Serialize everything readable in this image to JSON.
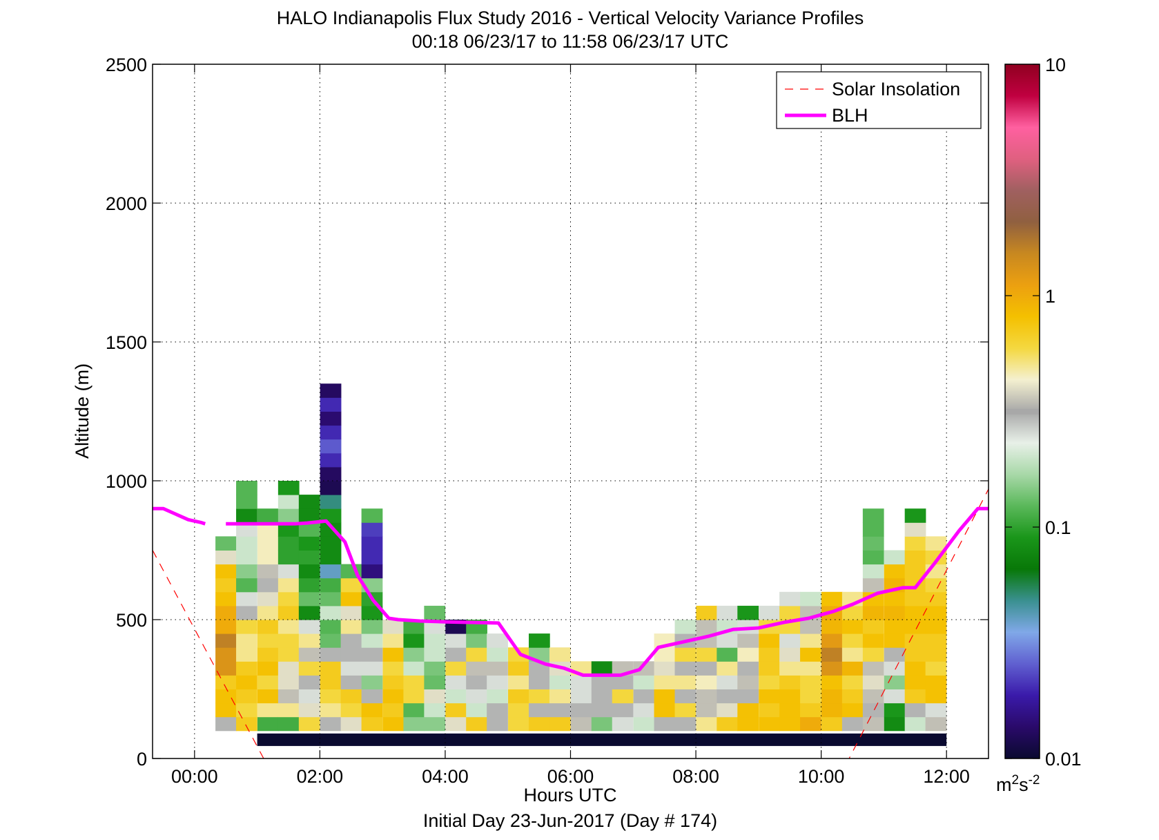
{
  "chart_data": {
    "type": "heatmap",
    "title": "HALO Indianapolis Flux Study 2016 - Vertical Velocity Variance Profiles",
    "subtitle": "00:18 06/23/17 to 11:58 06/23/17  UTC",
    "xlabel": "Hours UTC",
    "xlabel2": "Initial Day 23-Jun-2017 (Day # 174)",
    "ylabel": "Altitude (m)",
    "xlim": [
      -0.67,
      12.67
    ],
    "ylim": [
      0,
      2500
    ],
    "x_ticks": [
      0,
      2,
      4,
      6,
      8,
      10,
      12
    ],
    "x_tick_labels": [
      "00:00",
      "02:00",
      "04:00",
      "06:00",
      "08:00",
      "10:00",
      "12:00"
    ],
    "y_ticks": [
      0,
      500,
      1000,
      1500,
      2000,
      2500
    ],
    "y_tick_labels": [
      "0",
      "500",
      "1000",
      "1500",
      "2000",
      "2500"
    ],
    "grid": true,
    "legend_position": "top-right",
    "legend": [
      {
        "label": "Solar Insolation",
        "style": "dashed",
        "color": "#ff0000"
      },
      {
        "label": "BLH",
        "style": "solid",
        "color": "#ff00ff"
      }
    ],
    "colorbar": {
      "scale": "log",
      "range": [
        0.01,
        10
      ],
      "tick_values": [
        0.01,
        0.1,
        1,
        10
      ],
      "tick_labels": [
        "0.01",
        "0.1",
        "1",
        "10"
      ],
      "units_base": "m",
      "units_sup1": "2",
      "units_mid": "s",
      "units_sup2": "-2",
      "colormap": [
        "#0a0a30",
        "#2a0a6a",
        "#3a1aaa",
        "#6060d0",
        "#80a8e8",
        "#3a9090",
        "#087808",
        "#1a961a",
        "#5ab85a",
        "#a8d8a8",
        "#e8f0e8",
        "#a8a8a8",
        "#f4f0d0",
        "#f4d840",
        "#f4c000",
        "#eca010",
        "#c88820",
        "#906040",
        "#a06060",
        "#e06080",
        "#ff60a0",
        "#c00040",
        "#900020"
      ]
    },
    "blh": {
      "x": [
        -0.67,
        -0.5,
        -0.3,
        -0.1,
        0.1,
        0.17,
        0.5,
        0.8,
        1.2,
        1.6,
        1.8,
        2.1,
        2.4,
        2.6,
        2.85,
        3.1,
        3.25,
        3.6,
        4.0,
        4.4,
        4.85,
        5.2,
        5.6,
        5.9,
        6.2,
        6.5,
        6.8,
        7.1,
        7.4,
        7.8,
        8.2,
        8.6,
        9.0,
        9.4,
        9.8,
        10.2,
        10.5,
        10.9,
        11.3,
        11.5,
        11.8,
        12.2,
        12.5,
        12.67
      ],
      "y": [
        900,
        900,
        880,
        860,
        850,
        845,
        845,
        845,
        845,
        845,
        848,
        855,
        780,
        660,
        570,
        505,
        500,
        495,
        492,
        490,
        488,
        375,
        340,
        325,
        300,
        300,
        300,
        320,
        400,
        420,
        440,
        465,
        470,
        490,
        505,
        530,
        555,
        595,
        615,
        615,
        700,
        820,
        900,
        900
      ],
      "gaps_after_x": [
        0.17
      ]
    },
    "solar_insolation": {
      "segments": [
        {
          "x": [
            -0.67,
            1.15
          ],
          "y": [
            750,
            -20
          ]
        },
        {
          "x": [
            10.4,
            12.67
          ],
          "y": [
            -20,
            970
          ]
        }
      ]
    },
    "ground_bar": {
      "x": [
        1.0,
        12.0
      ],
      "y": [
        45,
        90
      ],
      "value": 0.01
    },
    "bin_width_hours": 0.333,
    "bin_height_m": 50,
    "columns": [
      {
        "x": 0.5,
        "start": 100,
        "values": [
          0.3,
          0.8,
          0.8,
          0.7,
          1.3,
          1.3,
          1.6,
          1.0,
          1.0,
          0.8,
          0.7,
          0.8,
          0.4,
          0.13
        ]
      },
      {
        "x": 0.83,
        "start": 100,
        "values": [
          0.7,
          0.6,
          0.7,
          0.8,
          0.7,
          0.5,
          0.5,
          0.6,
          0.3,
          0.25,
          0.12,
          0.15,
          0.2,
          0.2,
          0.25,
          0.08,
          0.12,
          0.12
        ]
      },
      {
        "x": 1.17,
        "start": 100,
        "values": [
          0.11,
          0.5,
          0.8,
          0.6,
          0.8,
          0.7,
          0.6,
          0.7,
          0.5,
          0.4,
          0.3,
          0.35,
          0.45,
          0.45,
          0.45,
          0.11
        ]
      },
      {
        "x": 1.5,
        "start": 100,
        "values": [
          0.11,
          0.5,
          0.35,
          0.4,
          0.4,
          0.6,
          0.6,
          0.5,
          0.7,
          0.6,
          0.5,
          0.25,
          0.1,
          0.1,
          0.09,
          0.15,
          0.2,
          0.09
        ]
      },
      {
        "x": 1.83,
        "start": 100,
        "values": [
          0.6,
          0.4,
          0.25,
          0.3,
          0.6,
          0.35,
          0.5,
          0.25,
          0.08,
          0.13,
          0.1,
          0.08,
          0.1,
          0.09,
          0.12,
          0.08,
          0.08
        ]
      },
      {
        "x": 2.17,
        "start": 100,
        "values": [
          0.3,
          0.5,
          0.6,
          0.7,
          0.7,
          0.3,
          0.13,
          0.12,
          0.2,
          0.13,
          0.11,
          0.04,
          0.08,
          0.08,
          0.08,
          0.09,
          0.05,
          0.012,
          0.013,
          0.02,
          0.025,
          0.02,
          0.014,
          0.02,
          0.013
        ]
      },
      {
        "x": 2.5,
        "start": 100,
        "values": [
          0.4,
          0.6,
          0.7,
          0.3,
          0.25,
          0.3,
          0.3,
          0.5,
          0.4,
          0.8,
          0.6,
          0.12
        ]
      },
      {
        "x": 2.83,
        "start": 100,
        "values": [
          0.7,
          0.8,
          0.3,
          0.15,
          0.25,
          0.3,
          0.2,
          0.14,
          0.09,
          0.1,
          0.15,
          0.015,
          0.02,
          0.02,
          0.022,
          0.12
        ]
      },
      {
        "x": 3.17,
        "start": 100,
        "values": [
          0.8,
          0.7,
          0.8,
          0.7,
          0.6,
          0.8,
          0.5,
          0.4
        ]
      },
      {
        "x": 3.5,
        "start": 100,
        "values": [
          0.15,
          0.12,
          0.6,
          0.6,
          0.2,
          0.15,
          0.09,
          0.11
        ]
      },
      {
        "x": 3.83,
        "start": 100,
        "values": [
          0.15,
          0.2,
          0.4,
          0.13,
          0.14,
          0.2,
          0.2,
          0.25,
          0.13
        ]
      },
      {
        "x": 4.17,
        "start": 100,
        "values": [
          0.4,
          0.7,
          0.2,
          0.25,
          0.6,
          0.3,
          0.25,
          0.012
        ]
      },
      {
        "x": 4.5,
        "start": 100,
        "values": [
          0.7,
          0.2,
          0.25,
          0.3,
          0.35,
          0.6,
          0.14,
          0.11
        ]
      },
      {
        "x": 4.83,
        "start": 100,
        "values": [
          0.3,
          0.3,
          0.2,
          0.25,
          0.35,
          0.2,
          0.25
        ]
      },
      {
        "x": 5.17,
        "start": 100,
        "values": [
          0.6,
          0.6,
          0.7,
          0.5,
          0.7,
          0.6
        ]
      },
      {
        "x": 5.5,
        "start": 100,
        "values": [
          0.7,
          0.3,
          0.6,
          0.3,
          0.3,
          0.15,
          0.09
        ]
      },
      {
        "x": 5.83,
        "start": 100,
        "values": [
          0.7,
          0.3,
          0.5,
          0.2,
          0.4,
          0.5
        ]
      },
      {
        "x": 6.17,
        "start": 100,
        "values": [
          0.35,
          0.3,
          0.25,
          0.25,
          0.5
        ]
      },
      {
        "x": 6.5,
        "start": 100,
        "values": [
          0.14,
          0.3,
          0.3,
          0.3,
          0.08
        ]
      },
      {
        "x": 6.83,
        "start": 100,
        "values": [
          0.25,
          0.3,
          0.6,
          0.3,
          0.35
        ]
      },
      {
        "x": 7.17,
        "start": 100,
        "values": [
          0.2,
          0.25,
          0.3,
          0.2,
          0.35
        ]
      },
      {
        "x": 7.5,
        "start": 100,
        "values": [
          0.3,
          0.8,
          0.8,
          0.5,
          0.4,
          0.45,
          0.45
        ]
      },
      {
        "x": 7.83,
        "start": 100,
        "values": [
          0.3,
          0.6,
          0.3,
          0.5,
          0.3,
          0.6,
          0.3,
          0.2
        ]
      },
      {
        "x": 8.17,
        "start": 100,
        "values": [
          0.5,
          0.35,
          0.35,
          0.45,
          0.3,
          0.6,
          0.35,
          0.35,
          0.7
        ]
      },
      {
        "x": 8.5,
        "start": 100,
        "values": [
          0.7,
          0.4,
          0.3,
          0.25,
          0.5,
          0.12,
          0.25,
          0.2,
          0.25
        ]
      },
      {
        "x": 8.83,
        "start": 100,
        "values": [
          0.8,
          0.8,
          0.3,
          0.35,
          0.3,
          0.45,
          0.35,
          0.25,
          0.09
        ]
      },
      {
        "x": 9.17,
        "start": 100,
        "values": [
          0.8,
          0.7,
          0.8,
          0.6,
          0.7,
          0.7,
          0.8,
          0.6,
          0.25
        ]
      },
      {
        "x": 9.5,
        "start": 100,
        "values": [
          0.8,
          0.8,
          0.8,
          0.7,
          0.5,
          0.4,
          0.25,
          0.6,
          0.6,
          0.25
        ]
      },
      {
        "x": 9.83,
        "start": 100,
        "values": [
          1.0,
          0.7,
          0.6,
          0.6,
          0.5,
          0.8,
          0.5,
          0.35,
          0.35,
          0.2
        ]
      },
      {
        "x": 10.17,
        "start": 100,
        "values": [
          0.7,
          0.9,
          0.9,
          0.8,
          1.3,
          1.6,
          1.2,
          0.9,
          1.0,
          0.8
        ]
      },
      {
        "x": 10.5,
        "start": 100,
        "values": [
          0.3,
          0.8,
          0.7,
          0.6,
          0.9,
          0.5,
          0.6,
          0.8,
          0.6,
          0.5
        ]
      },
      {
        "x": 10.83,
        "start": 100,
        "values": [
          0.35,
          0.3,
          0.35,
          0.4,
          0.35,
          0.6,
          0.8,
          0.7,
          0.9,
          0.8,
          0.35,
          0.2,
          0.12,
          0.13,
          0.12,
          0.12
        ]
      },
      {
        "x": 11.17,
        "start": 100,
        "values": [
          0.08,
          0.09,
          0.25,
          0.15,
          0.25,
          0.3,
          0.8,
          0.8,
          0.9,
          0.8,
          0.9,
          0.8,
          0.2
        ]
      },
      {
        "x": 11.5,
        "start": 100,
        "values": [
          0.2,
          0.3,
          0.7,
          0.8,
          0.8,
          0.7,
          0.7,
          0.8,
          0.8,
          0.7,
          0.7,
          0.7,
          0.7,
          0.6,
          0.4,
          0.09
        ]
      },
      {
        "x": 11.83,
        "start": 100,
        "values": [
          0.35,
          0.25,
          0.8,
          0.8,
          0.6,
          0.7,
          0.7,
          0.8,
          0.8,
          0.7,
          0.6,
          0.5,
          0.6,
          0.5
        ]
      }
    ]
  }
}
